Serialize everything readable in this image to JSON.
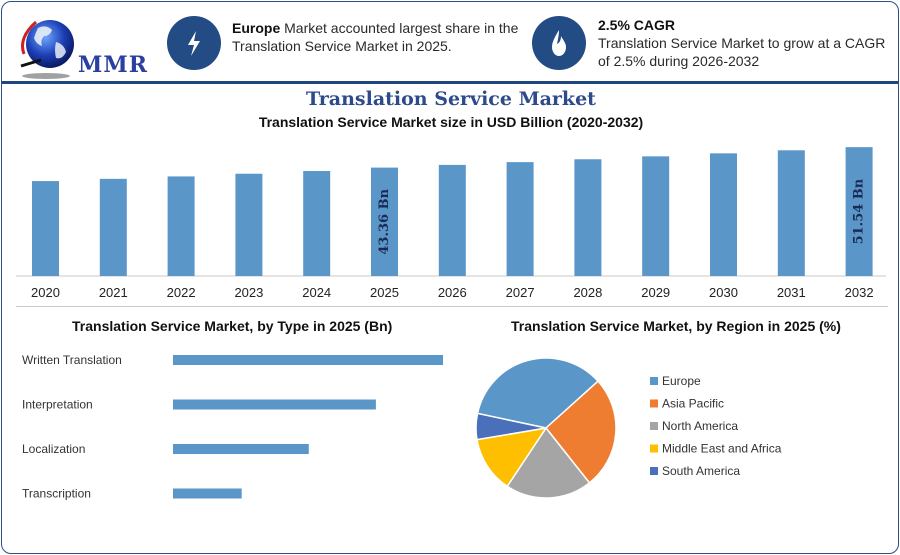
{
  "header": {
    "logo_text": "MMR",
    "info1": {
      "bold": "Europe",
      "text": " Market accounted largest share in the Translation Service Market in 2025.",
      "icon": "lightning-icon"
    },
    "info2": {
      "bold": "2.5% CAGR",
      "text": "Translation Service Market to grow at a CAGR of 2.5% during 2026-2032",
      "icon": "flame-icon"
    }
  },
  "title": "Translation Service Market",
  "subtitle": "Translation Service Market size in USD Billion (2020-2032)",
  "colors": {
    "bar": "#5b96c9",
    "header_blue": "#234c84",
    "title_blue": "#2d4a8a"
  },
  "chart_data": [
    {
      "type": "bar",
      "title": "Translation Service Market size in USD Billion (2020-2032)",
      "categories": [
        "2020",
        "2021",
        "2022",
        "2023",
        "2024",
        "2025",
        "2026",
        "2027",
        "2028",
        "2029",
        "2030",
        "2031",
        "2032"
      ],
      "values": [
        37.97,
        38.87,
        39.83,
        40.91,
        41.99,
        43.36,
        44.44,
        45.55,
        46.69,
        47.86,
        49.06,
        50.28,
        51.54
      ],
      "ylim": [
        0,
        52
      ],
      "data_labels": [
        {
          "index": 5,
          "text": "43.36 Bn"
        },
        {
          "index": 12,
          "text": "51.54 Bn"
        }
      ]
    },
    {
      "type": "bar",
      "orientation": "horizontal",
      "title": "Translation Service Market, by Type in 2025 (Bn)",
      "categories": [
        "Written Translation",
        "Interpretation",
        "Localization",
        "Transcription"
      ],
      "values": [
        17.3,
        13.0,
        8.7,
        4.4
      ]
    },
    {
      "type": "pie",
      "title": "Translation Service Market, by Region in 2025 (%)",
      "categories": [
        "Europe",
        "Asia Pacific",
        "North America",
        "Middle East and Africa",
        "South America"
      ],
      "values": [
        35,
        26,
        20,
        13,
        6
      ],
      "colors": [
        "#5b96c9",
        "#ee7d31",
        "#a5a5a5",
        "#fdbf00",
        "#4a6fbb"
      ]
    }
  ]
}
